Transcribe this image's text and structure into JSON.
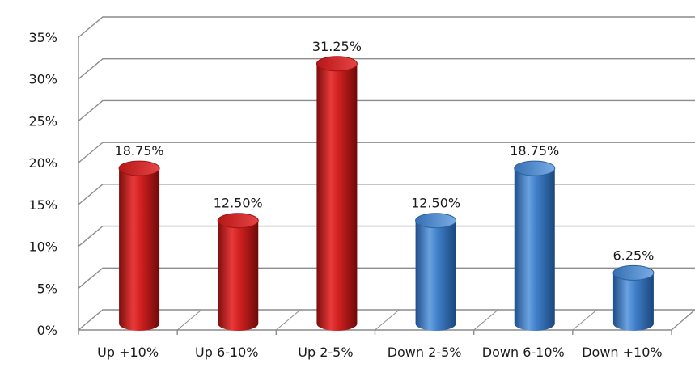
{
  "chart_data": {
    "type": "bar",
    "title": "",
    "xlabel": "",
    "ylabel": "",
    "categories": [
      "Up +10%",
      "Up 6-10%",
      "Up 2-5%",
      "Down 2-5%",
      "Down 6-10%",
      "Down +10%"
    ],
    "values": [
      18.75,
      12.5,
      31.25,
      12.5,
      18.75,
      6.25
    ],
    "data_labels": [
      "18.75%",
      "12.50%",
      "31.25%",
      "12.50%",
      "18.75%",
      "6.25%"
    ],
    "bar_colors": [
      "#cc1c1c",
      "#cc1c1c",
      "#cc1c1c",
      "#3f7ec8",
      "#3f7ec8",
      "#3f7ec8"
    ],
    "ylim": [
      0,
      35
    ],
    "yticks": [
      0,
      5,
      10,
      15,
      20,
      25,
      30,
      35
    ],
    "ytick_labels": [
      "0%",
      "5%",
      "10%",
      "15%",
      "20%",
      "25%",
      "30%",
      "35%"
    ],
    "grid": true,
    "legend": "none",
    "style": "3d-cylinder"
  },
  "colors": {
    "up": "#cc1c1c",
    "down": "#3f7ec8",
    "grid": "#8c8c8c"
  }
}
